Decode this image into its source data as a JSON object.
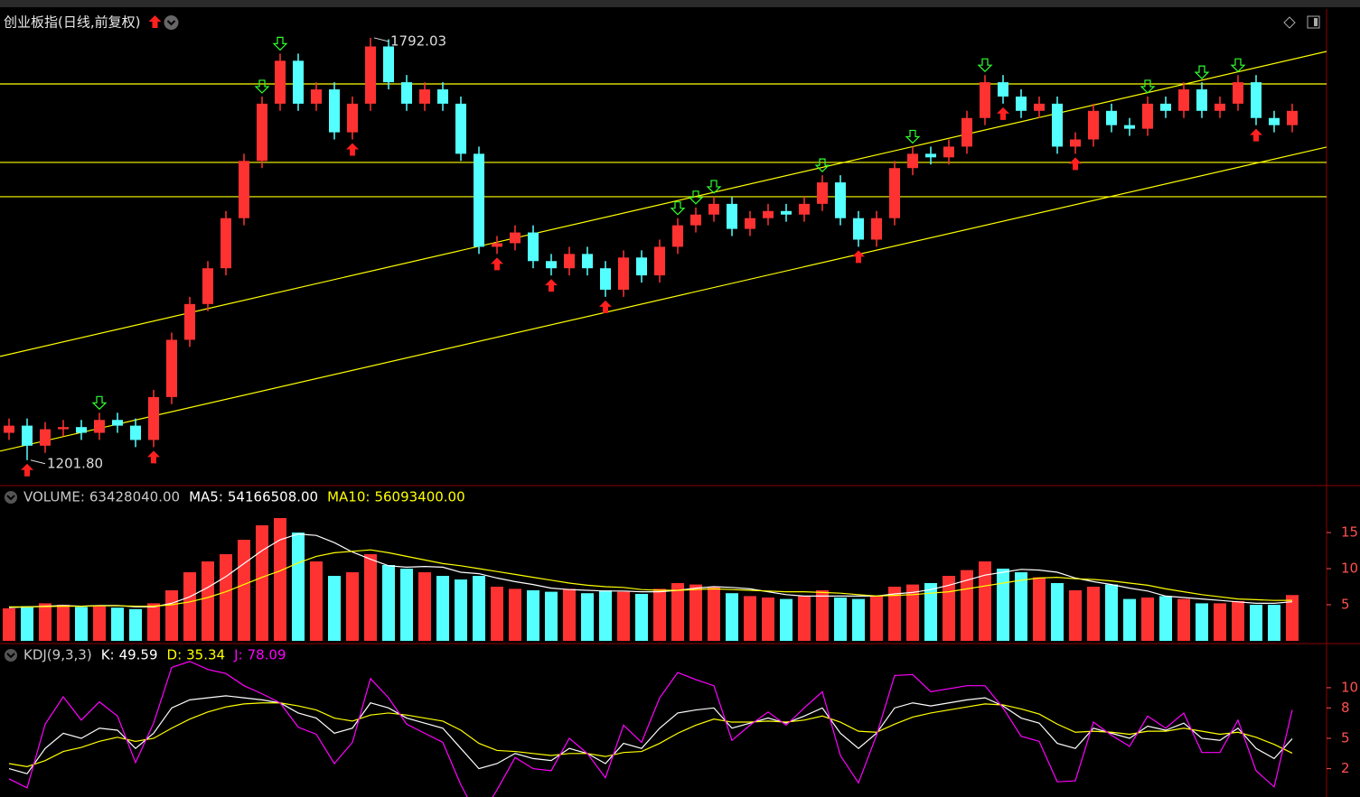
{
  "chart_data": [
    {
      "type": "candlestick",
      "title": "创业板指(日线,前复权)",
      "open": [
        1240,
        1250,
        1222,
        1245,
        1248,
        1240,
        1258,
        1250,
        1230,
        1290,
        1370,
        1420,
        1470,
        1540,
        1620,
        1700,
        1760,
        1700,
        1720,
        1660,
        1700,
        1780,
        1730,
        1700,
        1720,
        1700,
        1630,
        1500,
        1505,
        1520,
        1480,
        1470,
        1490,
        1470,
        1440,
        1485,
        1460,
        1500,
        1530,
        1545,
        1560,
        1525,
        1540,
        1550,
        1545,
        1560,
        1590,
        1540,
        1510,
        1540,
        1610,
        1630,
        1625,
        1640,
        1680,
        1730,
        1710,
        1690,
        1700,
        1640,
        1650,
        1690,
        1670,
        1665,
        1700,
        1690,
        1720,
        1690,
        1700,
        1730,
        1680,
        1670
      ],
      "high": [
        1260,
        1260,
        1255,
        1258,
        1258,
        1268,
        1268,
        1260,
        1300,
        1380,
        1430,
        1480,
        1550,
        1630,
        1710,
        1770,
        1770,
        1730,
        1730,
        1710,
        1792.03,
        1790,
        1740,
        1730,
        1730,
        1710,
        1640,
        1515,
        1530,
        1530,
        1490,
        1500,
        1500,
        1480,
        1495,
        1495,
        1510,
        1540,
        1555,
        1570,
        1570,
        1550,
        1560,
        1560,
        1570,
        1600,
        1600,
        1550,
        1550,
        1620,
        1640,
        1640,
        1650,
        1690,
        1740,
        1740,
        1720,
        1710,
        1710,
        1660,
        1700,
        1700,
        1680,
        1710,
        1710,
        1730,
        1730,
        1710,
        1740,
        1740,
        1690,
        1700
      ],
      "low": [
        1230,
        1201.8,
        1212,
        1235,
        1230,
        1230,
        1240,
        1220,
        1220,
        1280,
        1360,
        1410,
        1460,
        1530,
        1610,
        1690,
        1690,
        1690,
        1650,
        1650,
        1690,
        1720,
        1690,
        1690,
        1690,
        1620,
        1490,
        1490,
        1495,
        1470,
        1460,
        1460,
        1460,
        1430,
        1430,
        1450,
        1450,
        1490,
        1520,
        1535,
        1515,
        1515,
        1530,
        1535,
        1535,
        1550,
        1530,
        1500,
        1500,
        1530,
        1600,
        1615,
        1615,
        1630,
        1670,
        1700,
        1680,
        1680,
        1630,
        1630,
        1640,
        1660,
        1655,
        1655,
        1680,
        1680,
        1680,
        1680,
        1690,
        1670,
        1660,
        1660
      ],
      "close": [
        1250,
        1222,
        1245,
        1248,
        1240,
        1258,
        1250,
        1230,
        1290,
        1370,
        1420,
        1470,
        1540,
        1620,
        1700,
        1760,
        1700,
        1720,
        1660,
        1700,
        1780,
        1730,
        1700,
        1720,
        1700,
        1630,
        1500,
        1505,
        1520,
        1480,
        1470,
        1490,
        1470,
        1440,
        1485,
        1460,
        1500,
        1530,
        1545,
        1560,
        1525,
        1540,
        1550,
        1545,
        1560,
        1590,
        1540,
        1510,
        1540,
        1610,
        1630,
        1625,
        1640,
        1680,
        1730,
        1710,
        1690,
        1700,
        1640,
        1650,
        1690,
        1670,
        1665,
        1700,
        1690,
        1720,
        1690,
        1700,
        1730,
        1680,
        1670,
        1690
      ],
      "up_color": "#ff3232",
      "down_color": "#54ffff",
      "ylim": [
        1170,
        1826
      ],
      "annotations": [
        {
          "value": 1792.03,
          "label": "1792.03"
        },
        {
          "value": 1201.8,
          "label": "1201.80"
        }
      ],
      "hlines": [
        1727.6,
        1617.9,
        1570
      ],
      "channels": [
        [
          1346.8,
          1773
        ],
        [
          1214.4,
          1639.4
        ]
      ],
      "line_color": "#ffff00",
      "signals": {
        "buy": [
          1,
          8,
          19,
          27,
          30,
          33,
          47,
          55,
          59,
          69
        ],
        "sell": [
          5,
          14,
          15,
          37,
          38,
          39,
          45,
          50,
          54,
          63,
          66,
          68
        ]
      }
    },
    {
      "type": "volume",
      "ylim": [
        0,
        212500000
      ],
      "yticks": [
        {
          "value": 50000000,
          "label": "5"
        },
        {
          "value": 100000000,
          "label": "10"
        },
        {
          "value": 150000000,
          "label": "15"
        }
      ],
      "series": [
        {
          "name": "VOLUME:",
          "legend_label": "63428040.00",
          "values": [
            45000000,
            48000000,
            52000000,
            50000000,
            47000000,
            48000000,
            46000000,
            44000000,
            52000000,
            70000000,
            95000000,
            110000000,
            120000000,
            140000000,
            160000000,
            170000000,
            150000000,
            110000000,
            90000000,
            95000000,
            120000000,
            105000000,
            100000000,
            95000000,
            90000000,
            85000000,
            90000000,
            75000000,
            72000000,
            70000000,
            68000000,
            72000000,
            66000000,
            70000000,
            68000000,
            65000000,
            72000000,
            80000000,
            78000000,
            75000000,
            66000000,
            62000000,
            60000000,
            58000000,
            62000000,
            70000000,
            60000000,
            58000000,
            62000000,
            75000000,
            78000000,
            80000000,
            90000000,
            98000000,
            110000000,
            100000000,
            95000000,
            88000000,
            80000000,
            70000000,
            75000000,
            78000000,
            58000000,
            60000000,
            62000000,
            58000000,
            52000000,
            52000000,
            55000000,
            50000000,
            50000000,
            63428040
          ]
        },
        {
          "name": "MA5:",
          "legend_label": "54166508.00",
          "color": "#ffffff",
          "values": [
            46000000,
            47000000,
            48000000,
            49000000,
            48000000,
            49000000,
            49000000,
            47000000,
            47000000,
            52000000,
            61000000,
            74000000,
            89000000,
            107000000,
            125000000,
            140000000,
            148000000,
            146000000,
            136000000,
            123000000,
            113000000,
            104000000,
            102000000,
            103000000,
            102000000,
            95000000,
            93000000,
            87000000,
            82000000,
            78000000,
            73000000,
            71000000,
            70000000,
            69000000,
            69000000,
            68000000,
            68000000,
            70000000,
            73000000,
            75000000,
            74000000,
            72000000,
            68000000,
            64000000,
            62000000,
            62000000,
            62000000,
            62000000,
            62000000,
            65000000,
            67000000,
            71000000,
            77000000,
            84000000,
            91000000,
            95000000,
            99000000,
            98000000,
            95000000,
            87000000,
            82000000,
            78000000,
            73000000,
            69000000,
            62000000,
            60000000,
            58000000,
            56000000,
            54000000,
            52000000,
            52000000,
            54166508
          ]
        },
        {
          "name": "MA10:",
          "legend_label": "56093400.00",
          "color": "#ffff00",
          "values": [
            47000000,
            47000000,
            47500000,
            48000000,
            48000000,
            48500000,
            48500000,
            48000000,
            48000000,
            50000000,
            54000000,
            60000000,
            68000000,
            78000000,
            88000000,
            97000000,
            108000000,
            117000000,
            122000000,
            124000000,
            126000000,
            122000000,
            117000000,
            112000000,
            107000000,
            104000000,
            100000000,
            96000000,
            92000000,
            88000000,
            84000000,
            80000000,
            77000000,
            75000000,
            74000000,
            71000000,
            70000000,
            70000000,
            71000000,
            72000000,
            71000000,
            70000000,
            69000000,
            68000000,
            68000000,
            67000000,
            66000000,
            64000000,
            62000000,
            63000000,
            64000000,
            66000000,
            68000000,
            72000000,
            76000000,
            80000000,
            84000000,
            87000000,
            88000000,
            86000000,
            85000000,
            83000000,
            80000000,
            77000000,
            72000000,
            68000000,
            64000000,
            61000000,
            58000000,
            57000000,
            56000000,
            56093400
          ]
        }
      ]
    },
    {
      "type": "line",
      "title": "KDJ(9,3,3)",
      "ylim": [
        -8,
        124
      ],
      "yticks": [
        {
          "value": 100,
          "label": "10"
        },
        {
          "value": 80,
          "label": "8"
        },
        {
          "value": 50,
          "label": "5"
        },
        {
          "value": 20,
          "label": "2"
        }
      ],
      "series": [
        {
          "name": "K:",
          "legend_label": "49.59",
          "color": "#ffffff",
          "values": [
            20,
            15,
            40,
            55,
            50,
            60,
            58,
            40,
            55,
            80,
            88,
            90,
            92,
            90,
            88,
            85,
            75,
            70,
            55,
            60,
            85,
            80,
            70,
            65,
            60,
            40,
            20,
            25,
            35,
            30,
            28,
            40,
            35,
            25,
            45,
            40,
            60,
            75,
            78,
            80,
            60,
            65,
            70,
            65,
            72,
            80,
            55,
            40,
            55,
            80,
            85,
            82,
            85,
            88,
            90,
            82,
            70,
            65,
            45,
            40,
            60,
            55,
            50,
            62,
            58,
            65,
            50,
            48,
            60,
            40,
            30,
            49.59
          ]
        },
        {
          "name": "D:",
          "legend_label": "35.34",
          "color": "#ffff00",
          "values": [
            25,
            22,
            28,
            37,
            41,
            47,
            51,
            47,
            50,
            60,
            69,
            76,
            81,
            84,
            85,
            85,
            82,
            78,
            70,
            67,
            73,
            75,
            73,
            70,
            67,
            58,
            45,
            38,
            37,
            35,
            33,
            35,
            35,
            32,
            36,
            37,
            45,
            55,
            63,
            69,
            66,
            66,
            67,
            66,
            68,
            72,
            66,
            57,
            56,
            64,
            71,
            75,
            78,
            81,
            84,
            83,
            79,
            74,
            64,
            56,
            57,
            56,
            54,
            57,
            57,
            60,
            57,
            54,
            56,
            51,
            44,
            35.34
          ]
        },
        {
          "name": "J:",
          "legend_label": "78.09",
          "color": "#ff00ff",
          "values": [
            10,
            1,
            64,
            91,
            68,
            86,
            72,
            26,
            65,
            120,
            126,
            118,
            114,
            102,
            94,
            85,
            61,
            54,
            25,
            46,
            109,
            90,
            64,
            55,
            46,
            4,
            -30,
            -1,
            31,
            20,
            18,
            50,
            35,
            11,
            63,
            46,
            90,
            115,
            108,
            102,
            48,
            63,
            76,
            63,
            80,
            96,
            33,
            6,
            53,
            112,
            113,
            96,
            99,
            102,
            102,
            80,
            52,
            47,
            7,
            8,
            66,
            53,
            42,
            72,
            60,
            75,
            36,
            36,
            68,
            18,
            2,
            78.09
          ]
        }
      ]
    }
  ]
}
